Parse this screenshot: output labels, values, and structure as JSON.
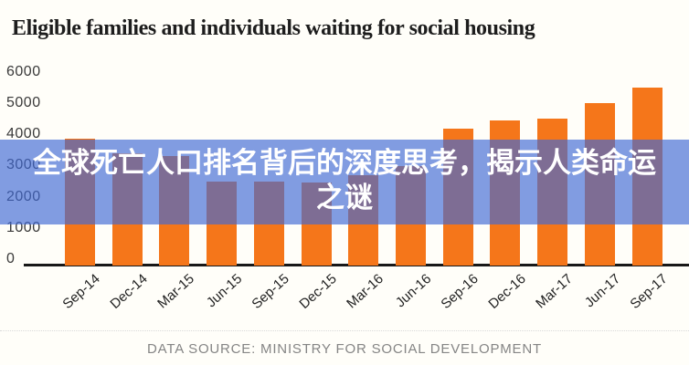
{
  "title": "Eligible families and individuals waiting for social housing",
  "overlay": {
    "line1": "全球死亡人口排名背后的深度思考，揭示人类命运",
    "line2": "之谜",
    "bg_color": "rgba(64,104,212,0.66)",
    "text_color": "#ffffff"
  },
  "caption": {
    "text": "DATA SOURCE: MINISTRY FOR SOCIAL DEVELOPMENT"
  },
  "chart_data": {
    "type": "bar",
    "title": "Eligible families and individuals waiting for social housing",
    "categories": [
      "Sep-14",
      "Dec-14",
      "Mar-15",
      "Jun-15",
      "Sep-15",
      "Dec-15",
      "Mar-16",
      "Jun-16",
      "Sep-16",
      "Dec-16",
      "Mar-17",
      "Jun-17",
      "Sep-17"
    ],
    "values": [
      4050,
      3600,
      3500,
      2700,
      2700,
      2650,
      2900,
      3200,
      4400,
      4650,
      4700,
      5200,
      5700
    ],
    "xlabel": "",
    "ylabel": "",
    "ylim": [
      0,
      6000
    ],
    "yticks": [
      0,
      1000,
      2000,
      3000,
      4000,
      5000,
      6000
    ],
    "grid": false,
    "legend": "none",
    "bar_color": "#f5761a",
    "axis_color": "#181818",
    "tick_label_color": "#3a3a3a",
    "source": "DATA SOURCE: MINISTRY FOR SOCIAL DEVELOPMENT"
  }
}
